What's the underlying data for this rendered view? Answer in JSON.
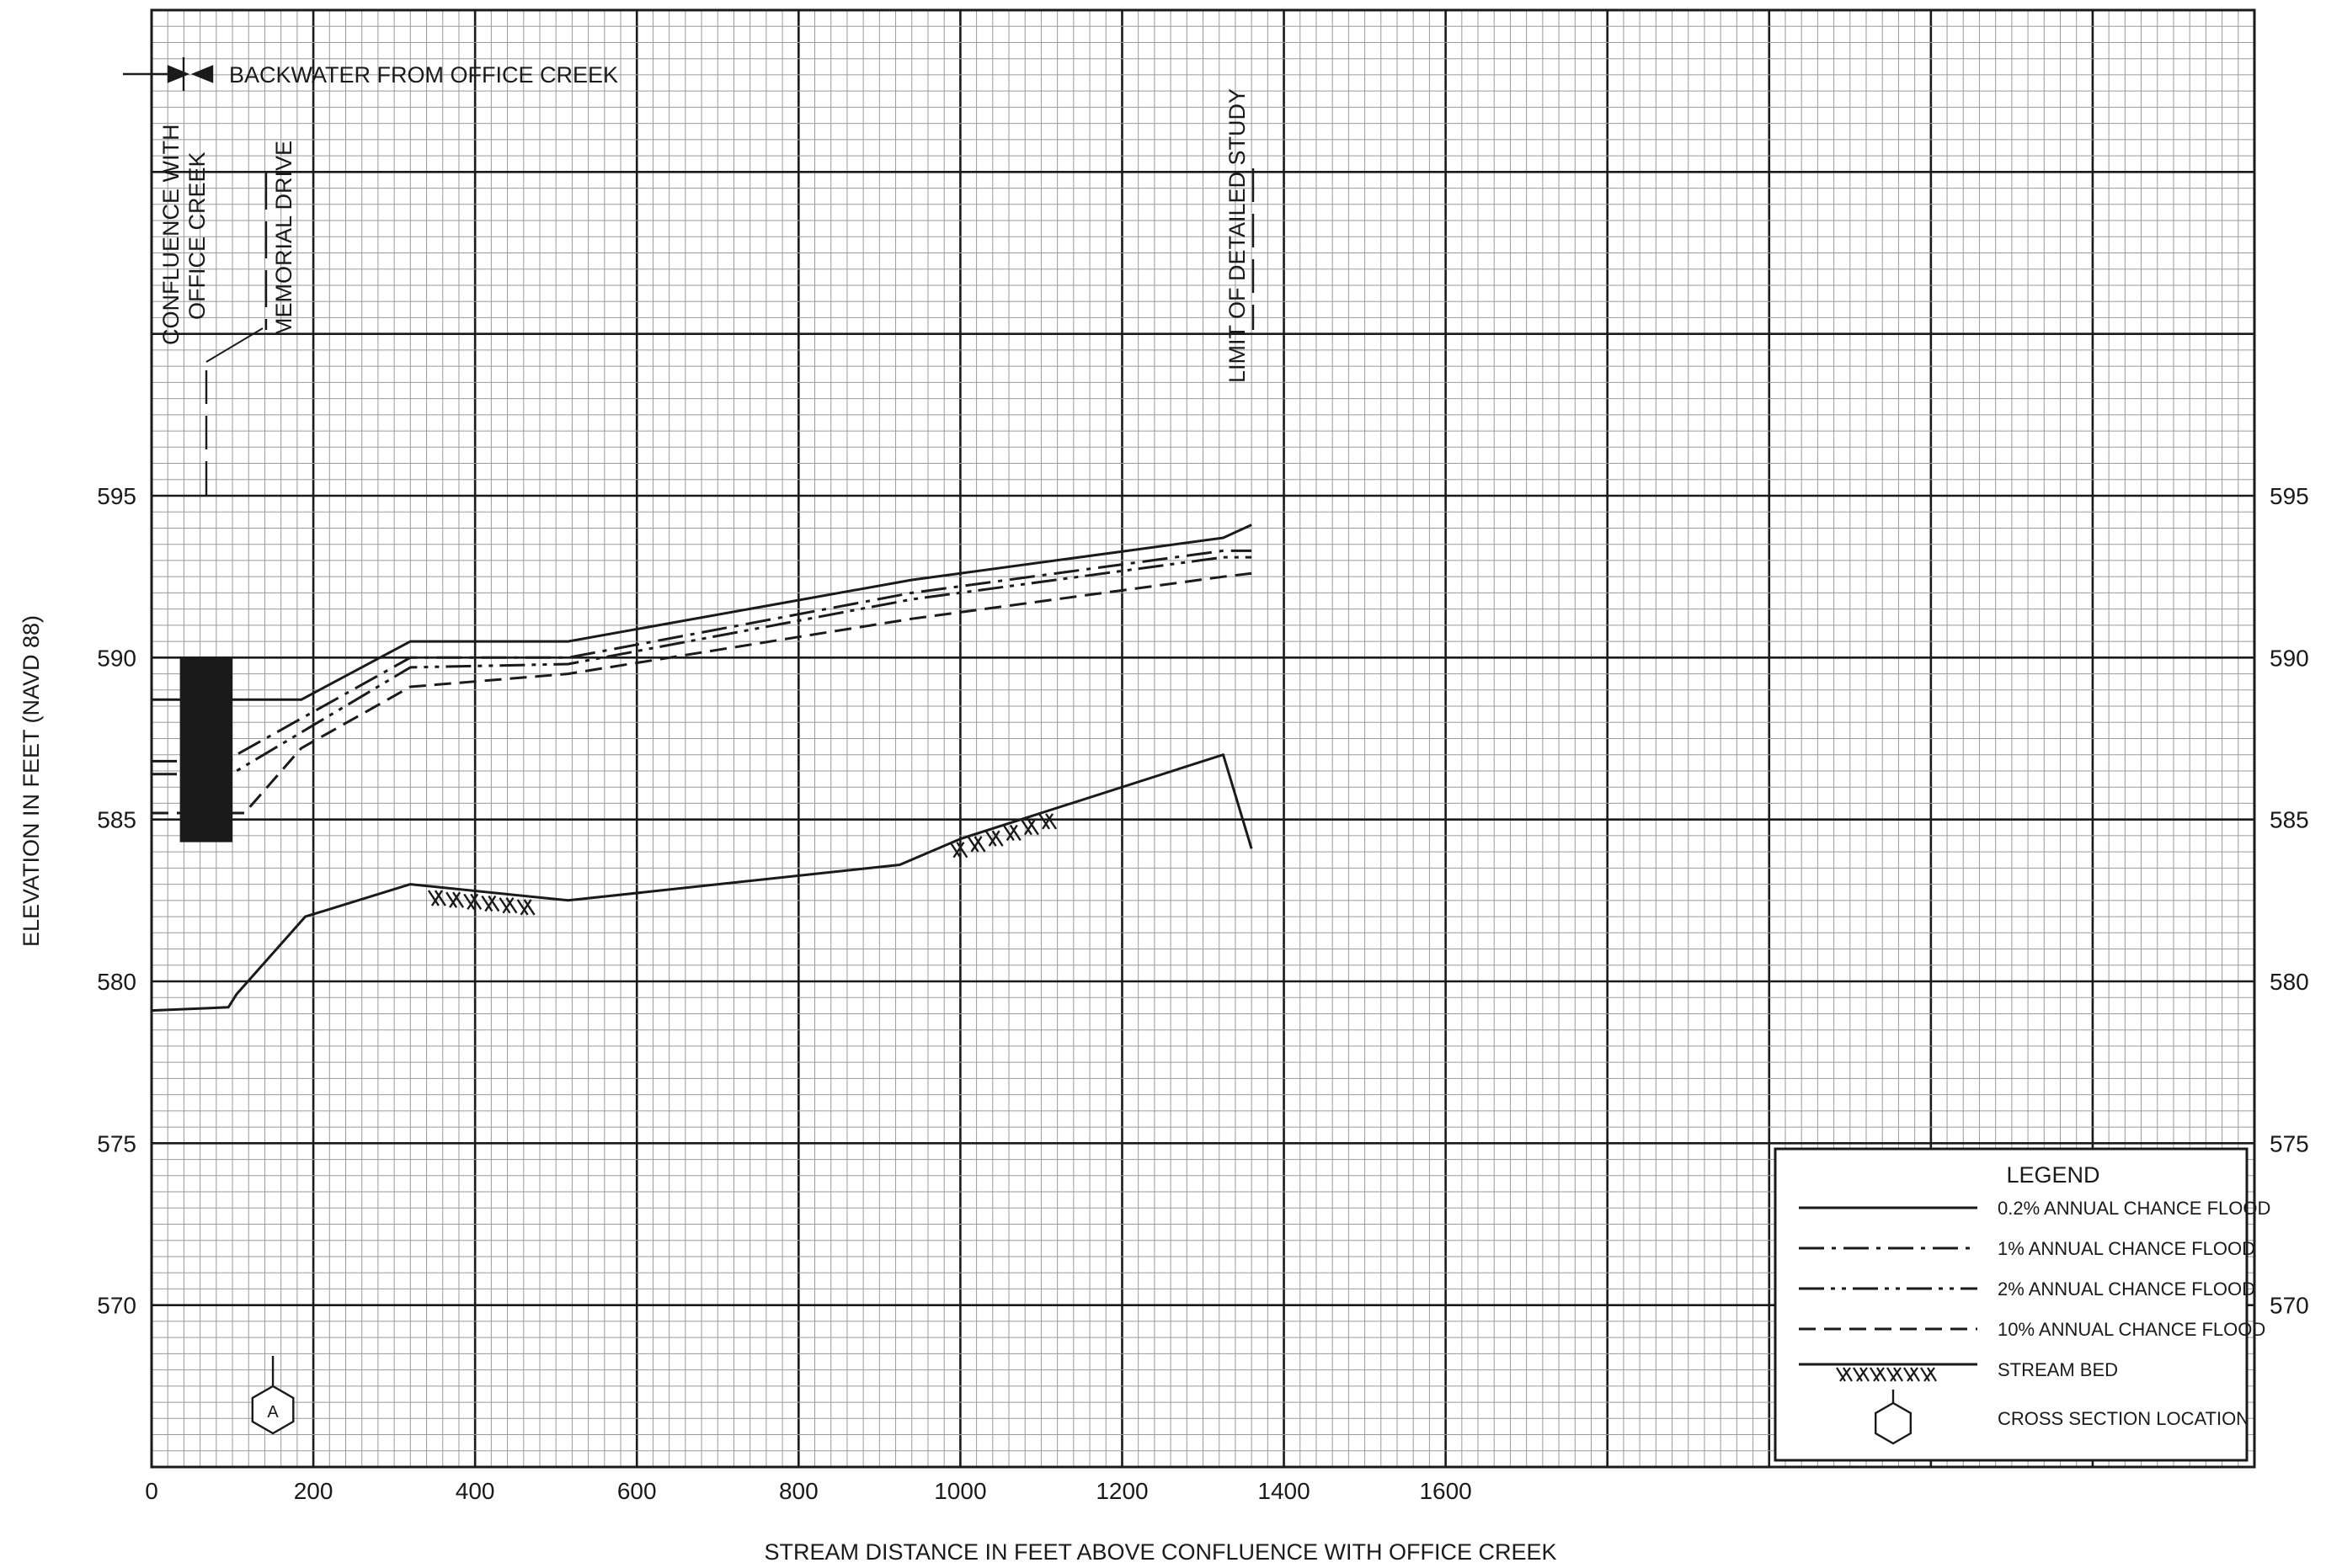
{
  "chart_data": {
    "type": "line",
    "xlabel": "STREAM DISTANCE IN FEET ABOVE CONFLUENCE WITH OFFICE CREEK",
    "ylabel": "ELEVATION IN FEET (NAVD 88)",
    "xlim": [
      0,
      2600
    ],
    "ylim": [
      565,
      610
    ],
    "x_ticks": [
      0,
      200,
      400,
      600,
      800,
      1000,
      1200,
      1400,
      1600
    ],
    "y_ticks": [
      570,
      575,
      580,
      585,
      590,
      595
    ],
    "grid": true,
    "legend_position": "bottom-right",
    "legend_title": "LEGEND",
    "legend_items": [
      "0.2% ANNUAL CHANCE FLOOD",
      "1% ANNUAL CHANCE FLOOD",
      "2% ANNUAL CHANCE FLOOD",
      "10% ANNUAL CHANCE FLOOD",
      "STREAM BED",
      "CROSS SECTION LOCATION"
    ],
    "series": [
      {
        "name": "0.2% ANNUAL CHANCE FLOOD",
        "style": "solid",
        "x": [
          0,
          185,
          320,
          515,
          940,
          1325,
          1360
        ],
        "y": [
          588.7,
          588.7,
          590.5,
          590.5,
          592.4,
          593.7,
          594.1
        ]
      },
      {
        "name": "1% ANNUAL CHANCE FLOOD",
        "style": "dash-dot",
        "x": [
          0,
          95,
          105,
          320,
          515,
          940,
          1325,
          1360
        ],
        "y": [
          586.8,
          586.8,
          587.0,
          590.0,
          590.0,
          592.0,
          593.3,
          593.3
        ]
      },
      {
        "name": "2% ANNUAL CHANCE FLOOD",
        "style": "dash-dot-dot",
        "x": [
          0,
          95,
          105,
          320,
          515,
          940,
          1325,
          1360
        ],
        "y": [
          586.4,
          586.4,
          586.5,
          589.7,
          589.8,
          591.8,
          593.1,
          593.1
        ]
      },
      {
        "name": "10% ANNUAL CHANCE FLOOD",
        "style": "dashed",
        "x": [
          0,
          115,
          185,
          320,
          515,
          940,
          1325,
          1360
        ],
        "y": [
          585.2,
          585.2,
          587.2,
          589.1,
          589.5,
          591.2,
          592.5,
          592.6
        ]
      },
      {
        "name": "STREAM BED",
        "style": "solid",
        "x": [
          0,
          95,
          105,
          190,
          320,
          515,
          925,
          1000,
          1325,
          1360
        ],
        "y": [
          579.1,
          579.2,
          579.6,
          582.0,
          583.0,
          582.5,
          583.6,
          584.4,
          587.0,
          584.1
        ]
      }
    ],
    "annotations": {
      "backwater": "BACKWATER FROM OFFICE CREEK",
      "confluence": [
        "CONFLUENCE WITH",
        "OFFICE CREEK"
      ],
      "memorial": "MEMORIAL DRIVE",
      "limit": "LIMIT OF DETAILED STUDY",
      "cross_section": "A"
    },
    "cross_section_x": 150,
    "structures": [
      {
        "name": "MEMORIAL DRIVE",
        "x": [
          35,
          100
        ],
        "y": [
          584.3,
          590.0
        ]
      }
    ]
  }
}
